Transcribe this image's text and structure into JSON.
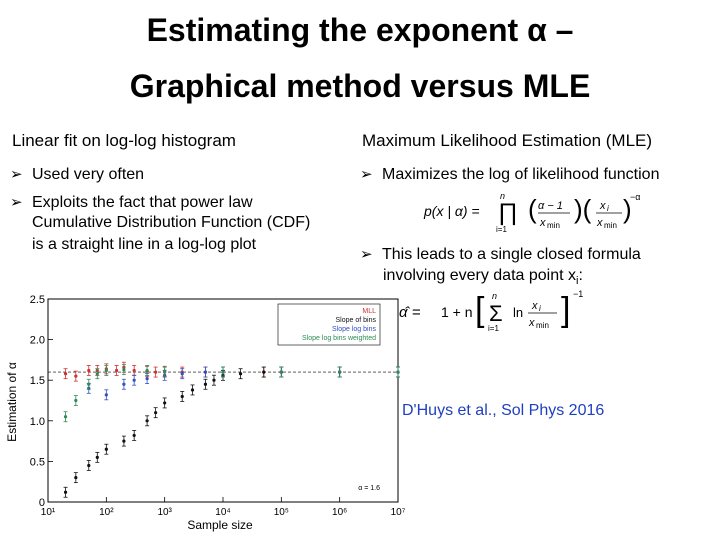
{
  "title": {
    "line1": "Estimating the exponent α –",
    "line2": "Graphical method versus MLE"
  },
  "left_column": {
    "heading": "Linear fit on log-log histogram",
    "bullets": [
      "Used very often",
      "Exploits the fact that power law",
      "Cumulative Distribution Function (CDF)",
      "is a straight line in a log-log plot"
    ]
  },
  "right_column": {
    "heading": "Maximum Likelihood Estimation (MLE)",
    "bullets": [
      "Maximizes the log of likelihood function",
      "This leads to a single closed formula",
      "involving every data point x"
    ],
    "subscript_i": "i",
    "colon": ":",
    "formula1": "p(x | α) = ∏ (α − 1)/x_min (x_i/x_min)^−α",
    "formula2": "α̂ = 1 + n [ Σ ln(x_i/x_min) ]^−1"
  },
  "reference": "D'Huys et al., Sol Phys 2016",
  "chart_data": {
    "type": "scatter",
    "xlabel": "Sample size",
    "ylabel": "Estimation of α",
    "x_scale": "log",
    "xlim": [
      10,
      10000000
    ],
    "ylim": [
      0,
      2.5
    ],
    "xticks": [
      "10¹",
      "10²",
      "10³",
      "10⁴",
      "10⁵",
      "10⁶",
      "10⁷"
    ],
    "yticks": [
      "0",
      "0.5",
      "1.0",
      "1.5",
      "2.0",
      "2.5"
    ],
    "annotation": "α = 1.6",
    "legend_position": "top-right",
    "series": [
      {
        "name": "MLL",
        "color": "#d03030",
        "x": [
          20,
          30,
          50,
          70,
          100,
          150,
          200,
          300,
          500,
          700,
          1000,
          2000,
          5000,
          10000,
          50000,
          100000,
          1000000,
          10000000
        ],
        "y": [
          1.58,
          1.55,
          1.62,
          1.62,
          1.64,
          1.62,
          1.66,
          1.62,
          1.61,
          1.6,
          1.6,
          1.6,
          1.6,
          1.6,
          1.6,
          1.6,
          1.6,
          1.6
        ]
      },
      {
        "name": "Slope of bins",
        "color": "#111111",
        "x": [
          20,
          30,
          50,
          70,
          100,
          200,
          300,
          500,
          700,
          1000,
          2000,
          3000,
          5000,
          7000,
          10000,
          20000,
          50000,
          100000,
          1000000,
          10000000
        ],
        "y": [
          0.12,
          0.3,
          0.45,
          0.55,
          0.65,
          0.75,
          0.82,
          1.0,
          1.1,
          1.22,
          1.3,
          1.38,
          1.45,
          1.5,
          1.56,
          1.58,
          1.6,
          1.6,
          1.6,
          1.6
        ]
      },
      {
        "name": "Slope log bins",
        "color": "#3050c0",
        "x": [
          50,
          100,
          200,
          300,
          500,
          1000,
          2000,
          5000,
          10000,
          100000,
          1000000,
          10000000
        ],
        "y": [
          1.4,
          1.32,
          1.45,
          1.5,
          1.52,
          1.56,
          1.58,
          1.6,
          1.6,
          1.6,
          1.6,
          1.6
        ]
      },
      {
        "name": "Slope log bins weighted",
        "color": "#2e8b57",
        "x": [
          20,
          30,
          50,
          70,
          100,
          200,
          500,
          1000,
          10000,
          100000,
          1000000,
          10000000
        ],
        "y": [
          1.05,
          1.25,
          1.45,
          1.58,
          1.62,
          1.63,
          1.62,
          1.61,
          1.6,
          1.6,
          1.6,
          1.6
        ]
      }
    ]
  }
}
